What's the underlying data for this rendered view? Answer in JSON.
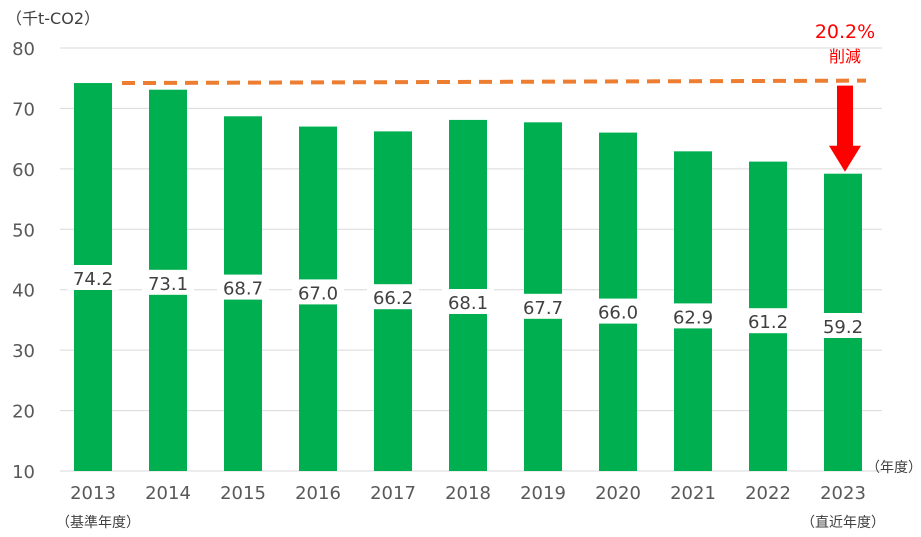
{
  "chart_data": {
    "type": "bar",
    "ylabel": "（千t-CO2）",
    "xunit": "（年度）",
    "categories": [
      "2013",
      "2014",
      "2015",
      "2016",
      "2017",
      "2018",
      "2019",
      "2020",
      "2021",
      "2022",
      "2023"
    ],
    "category_notes": {
      "first": "（基準年度）",
      "last": "（直近年度）"
    },
    "values": [
      74.2,
      73.1,
      68.7,
      67.0,
      66.2,
      68.1,
      67.7,
      66.0,
      62.9,
      61.2,
      59.2
    ],
    "value_labels": [
      "74.2",
      "73.1",
      "68.7",
      "67.0",
      "66.2",
      "68.1",
      "67.7",
      "66.0",
      "62.9",
      "61.2",
      "59.2"
    ],
    "ylim": [
      10,
      80
    ],
    "yticks": [
      "10",
      "20",
      "30",
      "40",
      "50",
      "60",
      "70",
      "80"
    ],
    "grid": true,
    "annotation": {
      "percent": "20.2%",
      "text": "削減"
    },
    "reference_line": {
      "from": 74.2,
      "to": 74.6,
      "style": "dashed"
    },
    "colors": {
      "bar": "#00b050",
      "reference_line": "#ed7d31",
      "arrow": "#ff0000",
      "annotation": "#ff0000",
      "grid": "#d9d9d9"
    }
  }
}
